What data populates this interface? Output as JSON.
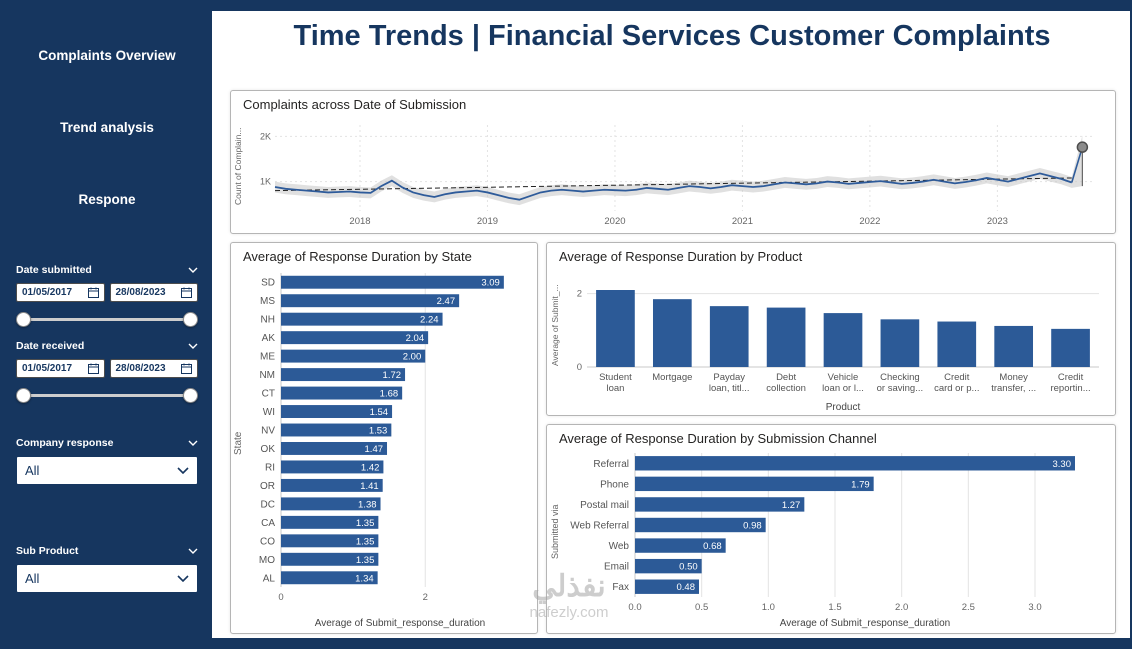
{
  "header": {
    "title": "Time Trends | Financial Services Customer Complaints"
  },
  "sidebar": {
    "nav": [
      {
        "label": "Complaints Overview"
      },
      {
        "label": "Trend analysis"
      },
      {
        "label": "Respone"
      }
    ],
    "slicers": {
      "date_submitted": {
        "label": "Date submitted",
        "start": "01/05/2017",
        "end": "28/08/2023"
      },
      "date_received": {
        "label": "Date received",
        "start": "01/05/2017",
        "end": "28/08/2023"
      },
      "company_response": {
        "label": "Company response",
        "value": "All"
      },
      "sub_product": {
        "label": "Sub Product",
        "value": "All"
      }
    }
  },
  "watermark": {
    "line1": "نفذلي",
    "line2": "nafezly.com"
  },
  "colors": {
    "navy": "#16365F",
    "bar": "#2C5A97",
    "line": "#2E5B9A",
    "band": "#c6c6c6",
    "trend": "#222222",
    "grid": "#e3e3e3",
    "tick": "#666666",
    "forecast_marker": "#8c8c8c"
  },
  "chart_data": [
    {
      "id": "complaints_over_time",
      "type": "line",
      "title": "Complaints across Date of Submission",
      "ylabel": "Count of Complain...",
      "x_start": "2017-05",
      "x_unit": "month",
      "ylim": [
        350,
        2250
      ],
      "yticks": [
        {
          "v": 1000,
          "label": "1K"
        },
        {
          "v": 2000,
          "label": "2K"
        }
      ],
      "xticks": [
        {
          "i": 8,
          "label": "2018"
        },
        {
          "i": 20,
          "label": "2019"
        },
        {
          "i": 32,
          "label": "2020"
        },
        {
          "i": 44,
          "label": "2021"
        },
        {
          "i": 56,
          "label": "2022"
        },
        {
          "i": 68,
          "label": "2023"
        }
      ],
      "values": [
        880,
        840,
        820,
        800,
        780,
        760,
        770,
        780,
        760,
        750,
        900,
        1020,
        870,
        760,
        700,
        660,
        720,
        760,
        780,
        800,
        760,
        700,
        640,
        600,
        680,
        760,
        800,
        820,
        800,
        780,
        800,
        820,
        810,
        800,
        820,
        860,
        840,
        820,
        860,
        900,
        880,
        850,
        880,
        920,
        900,
        880,
        900,
        940,
        980,
        960,
        940,
        960,
        1000,
        980,
        950,
        970,
        990,
        1010,
        980,
        950,
        970,
        1000,
        1040,
        1000,
        960,
        990,
        1030,
        1080,
        1040,
        1000,
        1060,
        1120,
        1180,
        1120,
        1060,
        980
      ],
      "trend": {
        "start": 800,
        "end": 1080
      },
      "band": 120,
      "forecast": {
        "value": 1760,
        "low": 900
      }
    },
    {
      "id": "by_state",
      "type": "hbar",
      "title": "Average of Response Duration by State",
      "xlabel": "Average of Submit_response_duration",
      "ylabel": "State",
      "xlim": [
        0,
        3.3
      ],
      "xticks": [
        {
          "v": 0,
          "label": "0"
        },
        {
          "v": 2,
          "label": "2"
        }
      ],
      "categories": [
        "SD",
        "MS",
        "NH",
        "AK",
        "ME",
        "NM",
        "CT",
        "WI",
        "NV",
        "OK",
        "RI",
        "OR",
        "DC",
        "CA",
        "CO",
        "MO",
        "AL"
      ],
      "values": [
        3.09,
        2.47,
        2.24,
        2.04,
        2.0,
        1.72,
        1.68,
        1.54,
        1.53,
        1.47,
        1.42,
        1.41,
        1.38,
        1.35,
        1.35,
        1.35,
        1.34
      ],
      "value_labels": [
        "3.09",
        "2.47",
        "2.24",
        "2.04",
        "2.00",
        "1.72",
        "1.68",
        "1.54",
        "1.53",
        "1.47",
        "1.42",
        "1.41",
        "1.38",
        "1.35",
        "1.35",
        "1.35",
        "1.34"
      ]
    },
    {
      "id": "by_product",
      "type": "vbar",
      "title": "Average of Response Duration by Product",
      "xlabel": "Product",
      "ylabel": "Average of Submit_...",
      "ylim": [
        0,
        2.4
      ],
      "yticks": [
        {
          "v": 0,
          "label": "0"
        },
        {
          "v": 2,
          "label": "2"
        }
      ],
      "categories": [
        [
          "Student",
          "loan"
        ],
        [
          "Mortgage"
        ],
        [
          "Payday",
          "loan, titl..."
        ],
        [
          "Debt",
          "collection"
        ],
        [
          "Vehicle",
          "loan or l..."
        ],
        [
          "Checking",
          "or saving..."
        ],
        [
          "Credit",
          "card or p..."
        ],
        [
          "Money",
          "transfer, ..."
        ],
        [
          "Credit",
          "reportin..."
        ]
      ],
      "values": [
        2.1,
        1.85,
        1.66,
        1.62,
        1.47,
        1.3,
        1.24,
        1.12,
        1.04
      ]
    },
    {
      "id": "by_channel",
      "type": "hbar",
      "title": "Average of Response Duration by Submission Channel",
      "xlabel": "Average of Submit_response_duration",
      "ylabel": "Submitted via",
      "xlim": [
        0,
        3.45
      ],
      "xticks": [
        {
          "v": 0,
          "label": "0.0"
        },
        {
          "v": 0.5,
          "label": "0.5"
        },
        {
          "v": 1,
          "label": "1.0"
        },
        {
          "v": 1.5,
          "label": "1.5"
        },
        {
          "v": 2,
          "label": "2.0"
        },
        {
          "v": 2.5,
          "label": "2.5"
        },
        {
          "v": 3,
          "label": "3.0"
        }
      ],
      "categories": [
        "Referral",
        "Phone",
        "Postal mail",
        "Web Referral",
        "Web",
        "Email",
        "Fax"
      ],
      "values": [
        3.3,
        1.79,
        1.27,
        0.98,
        0.68,
        0.5,
        0.48
      ],
      "value_labels": [
        "3.30",
        "1.79",
        "1.27",
        "0.98",
        "0.68",
        "0.50",
        "0.48"
      ]
    }
  ]
}
